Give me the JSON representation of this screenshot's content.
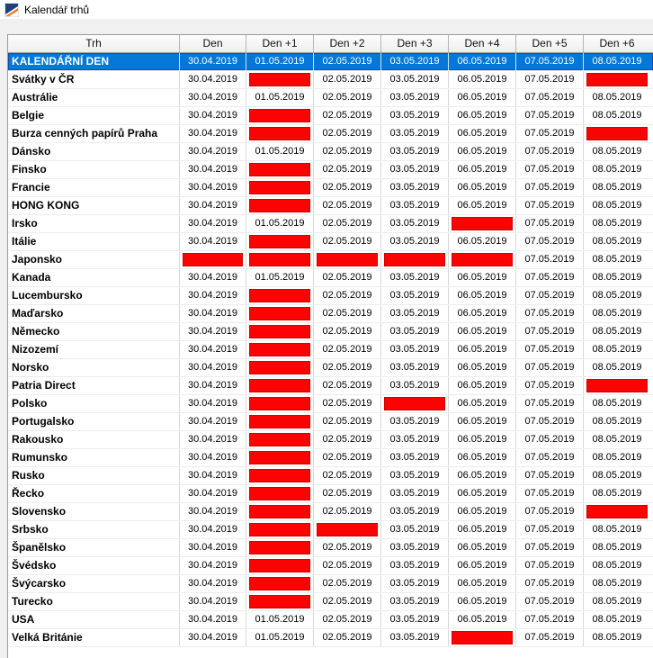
{
  "window": {
    "title": "Kalendář trhů",
    "icon": "patria-logo-icon"
  },
  "colors": {
    "selected_row_blue": "#0578d7",
    "holiday_red": "#fb0303",
    "header_bg": "#f0f0f0"
  },
  "table": {
    "columns": [
      "Trh",
      "Den",
      "Den +1",
      "Den +2",
      "Den +3",
      "Den +4",
      "Den +5",
      "Den +6"
    ],
    "dates": [
      "30.04.2019",
      "01.05.2019",
      "02.05.2019",
      "03.05.2019",
      "06.05.2019",
      "07.05.2019",
      "08.05.2019"
    ],
    "rows": [
      {
        "name": "KALENDÁŘNÍ DEN",
        "selected": true,
        "holidays": []
      },
      {
        "name": "Svátky v ČR",
        "holidays": [
          1,
          6
        ]
      },
      {
        "name": "Austrálie",
        "holidays": []
      },
      {
        "name": "Belgie",
        "holidays": [
          1
        ]
      },
      {
        "name": "Burza cenných papírů Praha",
        "holidays": [
          1,
          6
        ]
      },
      {
        "name": "Dánsko",
        "holidays": []
      },
      {
        "name": "Finsko",
        "holidays": [
          1
        ]
      },
      {
        "name": "Francie",
        "holidays": [
          1
        ]
      },
      {
        "name": "HONG KONG",
        "holidays": [
          1
        ]
      },
      {
        "name": "Irsko",
        "holidays": [
          4
        ]
      },
      {
        "name": "Itálie",
        "holidays": [
          1
        ]
      },
      {
        "name": "Japonsko",
        "holidays": [
          0,
          1,
          2,
          3,
          4
        ]
      },
      {
        "name": "Kanada",
        "holidays": []
      },
      {
        "name": "Lucembursko",
        "holidays": [
          1
        ]
      },
      {
        "name": "Maďarsko",
        "holidays": [
          1
        ]
      },
      {
        "name": "Německo",
        "holidays": [
          1
        ]
      },
      {
        "name": "Nizozemí",
        "holidays": [
          1
        ]
      },
      {
        "name": "Norsko",
        "holidays": [
          1
        ]
      },
      {
        "name": "Patria Direct",
        "holidays": [
          1,
          6
        ]
      },
      {
        "name": "Polsko",
        "holidays": [
          1,
          3
        ]
      },
      {
        "name": "Portugalsko",
        "holidays": [
          1
        ]
      },
      {
        "name": "Rakousko",
        "holidays": [
          1
        ]
      },
      {
        "name": "Rumunsko",
        "holidays": [
          1
        ]
      },
      {
        "name": "Rusko",
        "holidays": [
          1
        ]
      },
      {
        "name": "Řecko",
        "holidays": [
          1
        ]
      },
      {
        "name": "Slovensko",
        "holidays": [
          1,
          6
        ]
      },
      {
        "name": "Srbsko",
        "holidays": [
          1,
          2
        ]
      },
      {
        "name": "Španělsko",
        "holidays": [
          1
        ]
      },
      {
        "name": "Švédsko",
        "holidays": [
          1
        ]
      },
      {
        "name": "Švýcarsko",
        "holidays": [
          1
        ]
      },
      {
        "name": "Turecko",
        "holidays": [
          1
        ]
      },
      {
        "name": "USA",
        "holidays": []
      },
      {
        "name": "Velká Británie",
        "holidays": [
          4
        ]
      }
    ]
  }
}
